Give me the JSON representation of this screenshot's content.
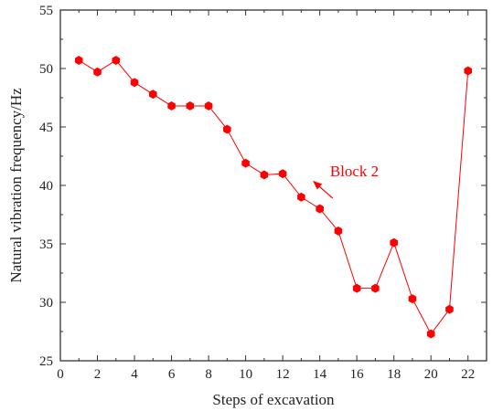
{
  "chart_data": {
    "type": "line",
    "xlabel": "Steps of excavation",
    "ylabel": "Natural vibration frequency/Hz",
    "xlim": [
      0,
      23
    ],
    "ylim": [
      25,
      55
    ],
    "x_ticks": [
      0,
      2,
      4,
      6,
      8,
      10,
      12,
      14,
      16,
      18,
      20,
      22
    ],
    "y_ticks": [
      25,
      30,
      35,
      40,
      45,
      50,
      55
    ],
    "grid": false,
    "series": [
      {
        "x": [
          1,
          2,
          3,
          4,
          5,
          6,
          7,
          8,
          9,
          10,
          11,
          12,
          13,
          14,
          15,
          16,
          17,
          18,
          19,
          20,
          21,
          22
        ],
        "values": [
          50.7,
          49.7,
          50.7,
          48.8,
          47.8,
          46.8,
          46.8,
          46.8,
          44.8,
          41.9,
          40.9,
          41.0,
          39.0,
          38.0,
          36.1,
          31.2,
          31.2,
          35.1,
          30.3,
          27.3,
          29.4,
          49.8
        ],
        "color": "#ff0000",
        "marker": "hexagon"
      }
    ],
    "annotations": [
      {
        "text": "Block 2",
        "color": "#ff0000",
        "arrow_from": [
          14.7,
          38.9
        ],
        "arrow_to": [
          13.7,
          40.3
        ]
      }
    ]
  }
}
